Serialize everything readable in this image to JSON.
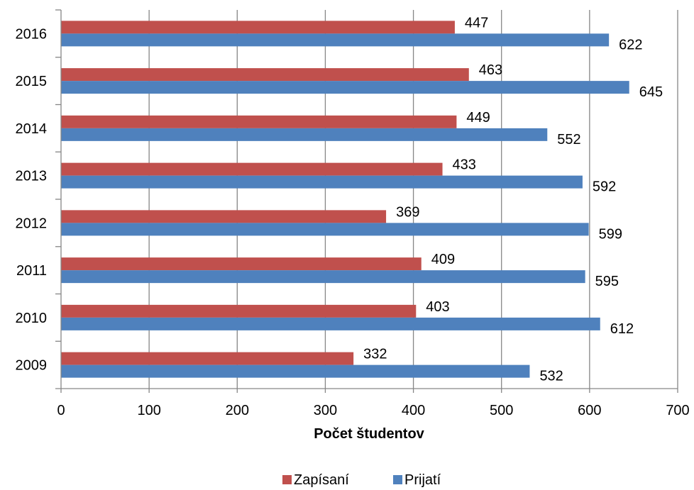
{
  "chart_data": {
    "type": "bar",
    "orientation": "horizontal",
    "categories": [
      "2009",
      "2010",
      "2011",
      "2012",
      "2013",
      "2014",
      "2015",
      "2016"
    ],
    "series": [
      {
        "name": "Zapísaní",
        "color": "#c0504d",
        "values": [
          332,
          403,
          409,
          369,
          433,
          449,
          463,
          447
        ]
      },
      {
        "name": "Prijatí",
        "color": "#4f81bd",
        "values": [
          532,
          612,
          595,
          599,
          592,
          552,
          645,
          622
        ]
      }
    ],
    "xlabel": "Počet študentov",
    "xlim": [
      0,
      700
    ],
    "xticks": [
      0,
      100,
      200,
      300,
      400,
      500,
      600,
      700
    ],
    "grid": true,
    "legend_position": "bottom",
    "data_labels": true
  }
}
